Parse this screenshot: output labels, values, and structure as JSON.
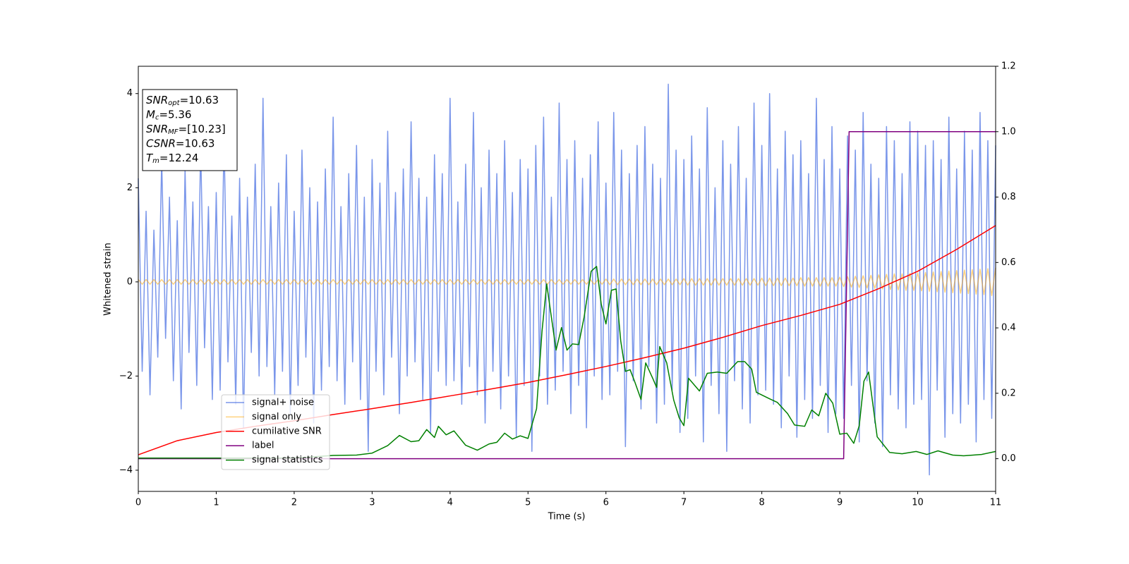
{
  "chart_data": {
    "type": "line",
    "xlabel": "Time (s)",
    "ylabel": "Whitened strain",
    "xlim": [
      0,
      11
    ],
    "xticks": [
      0,
      1,
      2,
      3,
      4,
      5,
      6,
      7,
      8,
      9,
      10,
      11
    ],
    "ylim": [
      -4.45,
      4.58
    ],
    "yticks": [
      {
        "value": -4,
        "label": "−4"
      },
      {
        "value": -2,
        "label": "−2"
      },
      0,
      2,
      4
    ],
    "y2lim": [
      -0.1,
      1.2
    ],
    "y2ticks": [
      {
        "value": 0,
        "label": "0.0"
      },
      0.2,
      0.4,
      0.6,
      0.8,
      {
        "value": 1,
        "label": "1.0"
      },
      1.2
    ],
    "legend": "lower left",
    "annotations": [
      {
        "name": "SNR",
        "subscript": "opt",
        "text": "=10.63"
      },
      {
        "name": "M",
        "subscript": "c",
        "text": "=5.36"
      },
      {
        "name": "SNR",
        "subscript": "MF",
        "text": "=[10.23]"
      },
      {
        "name": "CSNR",
        "text": "=10.63"
      },
      {
        "name": "T",
        "subscript": "m",
        "text": "=12.24"
      }
    ],
    "series": [
      {
        "name": "signal+ noise",
        "color": "#4169e1",
        "alpha": 0.7,
        "x": [
          0,
          0.05,
          0.1,
          0.15,
          0.2,
          0.25,
          0.3,
          0.35,
          0.4,
          0.45,
          0.5,
          0.55,
          0.6,
          0.65,
          0.7,
          0.75,
          0.8,
          0.85,
          0.9,
          0.95,
          1,
          1.05,
          1.1,
          1.15,
          1.2,
          1.25,
          1.3,
          1.35,
          1.4,
          1.45,
          1.5,
          1.55,
          1.6,
          1.65,
          1.7,
          1.75,
          1.8,
          1.85,
          1.9,
          1.95,
          2,
          2.05,
          2.1,
          2.15,
          2.2,
          2.25,
          2.3,
          2.35,
          2.4,
          2.45,
          2.5,
          2.55,
          2.6,
          2.65,
          2.7,
          2.75,
          2.8,
          2.85,
          2.9,
          2.95,
          3,
          3.05,
          3.1,
          3.15,
          3.2,
          3.25,
          3.3,
          3.35,
          3.4,
          3.45,
          3.5,
          3.55,
          3.6,
          3.65,
          3.7,
          3.75,
          3.8,
          3.85,
          3.9,
          3.95,
          4,
          4.05,
          4.1,
          4.15,
          4.2,
          4.25,
          4.3,
          4.35,
          4.4,
          4.45,
          4.5,
          4.55,
          4.6,
          4.65,
          4.7,
          4.75,
          4.8,
          4.85,
          4.9,
          4.95,
          5,
          5.05,
          5.1,
          5.15,
          5.2,
          5.25,
          5.3,
          5.35,
          5.4,
          5.45,
          5.5,
          5.55,
          5.6,
          5.65,
          5.7,
          5.75,
          5.8,
          5.85,
          5.9,
          5.95,
          6,
          6.05,
          6.1,
          6.15,
          6.2,
          6.25,
          6.3,
          6.35,
          6.4,
          6.45,
          6.5,
          6.55,
          6.6,
          6.65,
          6.7,
          6.75,
          6.8,
          6.85,
          6.9,
          6.95,
          7,
          7.05,
          7.1,
          7.15,
          7.2,
          7.25,
          7.3,
          7.35,
          7.4,
          7.45,
          7.5,
          7.55,
          7.6,
          7.65,
          7.7,
          7.75,
          7.8,
          7.85,
          7.9,
          7.95,
          8,
          8.05,
          8.1,
          8.15,
          8.2,
          8.25,
          8.3,
          8.35,
          8.4,
          8.45,
          8.5,
          8.55,
          8.6,
          8.65,
          8.7,
          8.75,
          8.8,
          8.85,
          8.9,
          8.95,
          9,
          9.05,
          9.1,
          9.15,
          9.2,
          9.25,
          9.3,
          9.35,
          9.4,
          9.45,
          9.5,
          9.55,
          9.6,
          9.65,
          9.7,
          9.75,
          9.8,
          9.85,
          9.9,
          9.95,
          10,
          10.05,
          10.1,
          10.15,
          10.2,
          10.25,
          10.3,
          10.35,
          10.4,
          10.45,
          10.5,
          10.55,
          10.6,
          10.65,
          10.7,
          10.75,
          10.8,
          10.85,
          10.9,
          10.95,
          11
        ],
        "values": [
          2.2,
          -1.9,
          1.5,
          -2.4,
          1.1,
          -1.6,
          2.6,
          -1.2,
          1.8,
          -2.1,
          1.3,
          -2.7,
          2.4,
          -1.5,
          1.7,
          -2.2,
          2.9,
          -1.4,
          1.6,
          -2.5,
          1.9,
          -2.3,
          3.1,
          -1.7,
          1.4,
          -2.6,
          2.2,
          -3.1,
          1.8,
          -1.5,
          2.5,
          -2.0,
          3.9,
          -1.8,
          1.6,
          -2.4,
          2.1,
          -1.9,
          2.7,
          -2.8,
          1.5,
          -2.2,
          2.8,
          -1.6,
          2.0,
          -3.0,
          1.7,
          -2.3,
          2.4,
          -1.8,
          3.5,
          -2.1,
          1.6,
          -2.6,
          2.3,
          -1.7,
          2.9,
          -2.5,
          1.8,
          -3.6,
          2.6,
          -1.9,
          2.1,
          -2.4,
          3.2,
          -1.6,
          1.9,
          -2.8,
          2.4,
          -2.0,
          3.4,
          -1.7,
          2.2,
          -2.5,
          1.8,
          -3.2,
          2.7,
          -1.9,
          2.3,
          -2.2,
          3.9,
          -2.1,
          1.7,
          -2.6,
          2.5,
          -1.8,
          3.6,
          -2.4,
          2.0,
          -3.0,
          2.8,
          -1.9,
          2.3,
          -2.7,
          3.0,
          -2.0,
          1.9,
          -3.3,
          2.6,
          -2.2,
          2.4,
          -3.6,
          2.9,
          -2.0,
          3.5,
          -2.6,
          1.8,
          -2.3,
          3.8,
          -1.9,
          2.6,
          -2.8,
          3.0,
          -2.2,
          2.2,
          -3.1,
          2.7,
          -2.0,
          3.4,
          -2.5,
          2.1,
          -2.4,
          3.6,
          -1.9,
          2.8,
          -3.5,
          2.3,
          -2.1,
          2.9,
          -2.7,
          3.3,
          -1.8,
          2.5,
          -3.0,
          2.2,
          -2.6,
          4.2,
          -2.3,
          2.8,
          -3.2,
          2.6,
          -2.9,
          3.1,
          -2.0,
          2.4,
          -3.4,
          3.7,
          -2.2,
          2.0,
          -2.8,
          3.0,
          -3.6,
          2.5,
          -2.1,
          3.3,
          -2.7,
          2.2,
          -3.0,
          3.8,
          -2.4,
          2.9,
          -2.3,
          4.0,
          -2.6,
          2.4,
          -3.1,
          3.2,
          -2.0,
          2.7,
          -3.3,
          3.0,
          -2.5,
          2.3,
          -2.9,
          3.9,
          -2.2,
          2.6,
          -3.2,
          3.3,
          -2.8,
          2.4,
          -2.9,
          3.1,
          -2.2,
          2.8,
          -3.4,
          3.6,
          -2.1,
          2.5,
          -3.0,
          2.2,
          -3.5,
          3.3,
          -2.4,
          3.0,
          -2.7,
          2.3,
          -3.1,
          3.4,
          -2.6,
          3.2,
          -2.5,
          2.9,
          -4.1,
          3.0,
          -2.3,
          2.6,
          -3.3,
          3.5,
          -2.8,
          2.4,
          -3.0,
          3.2,
          -2.6,
          2.8,
          -3.4,
          3.6,
          -2.5,
          3.0,
          -2.9,
          2.9
        ]
      },
      {
        "name": "signal only",
        "color": "#ffa500",
        "alpha": 0.5,
        "x": [
          0,
          0.05,
          0.1,
          0.15,
          0.2,
          0.25,
          0.3,
          0.35,
          0.4,
          0.45,
          0.5,
          0.55,
          0.6,
          0.65,
          0.7,
          0.75,
          0.8,
          0.85,
          0.9,
          0.95,
          1,
          1.05,
          1.1,
          1.15,
          1.2,
          1.25,
          1.3,
          1.35,
          1.4,
          1.45,
          1.5,
          1.55,
          1.6,
          1.65,
          1.7,
          1.75,
          1.8,
          1.85,
          1.9,
          1.95,
          2,
          2.05,
          2.1,
          2.15,
          2.2,
          2.25,
          2.3,
          2.35,
          2.4,
          2.45,
          2.5,
          2.55,
          2.6,
          2.65,
          2.7,
          2.75,
          2.8,
          2.85,
          2.9,
          2.95,
          3,
          3.05,
          3.1,
          3.15,
          3.2,
          3.25,
          3.3,
          3.35,
          3.4,
          3.45,
          3.5,
          3.55,
          3.6,
          3.65,
          3.7,
          3.75,
          3.8,
          3.85,
          3.9,
          3.95,
          4,
          4.05,
          4.1,
          4.15,
          4.2,
          4.25,
          4.3,
          4.35,
          4.4,
          4.45,
          4.5,
          4.55,
          4.6,
          4.65,
          4.7,
          4.75,
          4.8,
          4.85,
          4.9,
          4.95,
          5,
          5.05,
          5.1,
          5.15,
          5.2,
          5.25,
          5.3,
          5.35,
          5.4,
          5.45,
          5.5,
          5.55,
          5.6,
          5.65,
          5.7,
          5.75,
          5.8,
          5.85,
          5.9,
          5.95,
          6,
          6.05,
          6.1,
          6.15,
          6.2,
          6.25,
          6.3,
          6.35,
          6.4,
          6.45,
          6.5,
          6.55,
          6.6,
          6.65,
          6.7,
          6.75,
          6.8,
          6.85,
          6.9,
          6.95,
          7,
          7.05,
          7.1,
          7.15,
          7.2,
          7.25,
          7.3,
          7.35,
          7.4,
          7.45,
          7.5,
          7.55,
          7.6,
          7.65,
          7.7,
          7.75,
          7.8,
          7.85,
          7.9,
          7.95,
          8,
          8.05,
          8.1,
          8.15,
          8.2,
          8.25,
          8.3,
          8.35,
          8.4,
          8.45,
          8.5,
          8.55,
          8.6,
          8.65,
          8.7,
          8.75,
          8.8,
          8.85,
          8.9,
          8.95,
          9,
          9.05,
          9.1,
          9.15,
          9.2,
          9.25,
          9.3,
          9.35,
          9.4,
          9.45,
          9.5,
          9.55,
          9.6,
          9.65,
          9.7,
          9.75,
          9.8,
          9.85,
          9.9,
          9.95,
          10,
          10.05,
          10.1,
          10.15,
          10.2,
          10.25,
          10.3,
          10.35,
          10.4,
          10.45,
          10.5,
          10.55,
          10.6,
          10.65,
          10.7,
          10.75,
          10.8,
          10.85,
          10.9,
          10.95,
          11
        ],
        "values": [
          0.05,
          -0.05,
          0.05,
          -0.05,
          0.05,
          -0.05,
          0.05,
          -0.05,
          0.05,
          -0.05,
          0.05,
          -0.05,
          0.05,
          -0.05,
          0.05,
          -0.05,
          0.05,
          -0.05,
          0.05,
          -0.05,
          0.05,
          -0.05,
          0.05,
          -0.05,
          0.05,
          -0.05,
          0.05,
          -0.05,
          0.05,
          -0.05,
          0.05,
          -0.05,
          0.05,
          -0.05,
          0.05,
          -0.05,
          0.05,
          -0.05,
          0.05,
          -0.05,
          0.05,
          -0.05,
          0.05,
          -0.05,
          0.05,
          -0.05,
          0.05,
          -0.05,
          0.05,
          -0.05,
          0.05,
          -0.05,
          0.05,
          -0.05,
          0.05,
          -0.05,
          0.05,
          -0.05,
          0.05,
          -0.05,
          0.05,
          -0.05,
          0.05,
          -0.05,
          0.05,
          -0.05,
          0.05,
          -0.05,
          0.05,
          -0.05,
          0.05,
          -0.05,
          0.05,
          -0.05,
          0.05,
          -0.05,
          0.05,
          -0.05,
          0.05,
          -0.05,
          0.05,
          -0.05,
          0.05,
          -0.05,
          0.05,
          -0.05,
          0.05,
          -0.05,
          0.05,
          -0.05,
          0.05,
          -0.05,
          0.05,
          -0.05,
          0.05,
          -0.05,
          0.05,
          -0.05,
          0.05,
          -0.05,
          0.05,
          -0.05,
          0.05,
          -0.05,
          0.05,
          -0.05,
          0.05,
          -0.05,
          0.05,
          -0.05,
          0.05,
          -0.05,
          0.05,
          -0.05,
          0.05,
          -0.05,
          0.05,
          -0.05,
          0.05,
          -0.05,
          0.06,
          -0.06,
          0.06,
          -0.06,
          0.06,
          -0.06,
          0.06,
          -0.06,
          0.06,
          -0.06,
          0.06,
          -0.06,
          0.06,
          -0.06,
          0.06,
          -0.06,
          0.06,
          -0.06,
          0.06,
          -0.06,
          0.07,
          -0.07,
          0.07,
          -0.07,
          0.07,
          -0.07,
          0.07,
          -0.07,
          0.07,
          -0.07,
          0.07,
          -0.07,
          0.07,
          -0.07,
          0.07,
          -0.07,
          0.07,
          -0.07,
          0.07,
          -0.07,
          0.08,
          -0.08,
          0.08,
          -0.08,
          0.08,
          -0.08,
          0.08,
          -0.08,
          0.08,
          -0.08,
          0.09,
          -0.09,
          0.09,
          -0.09,
          0.09,
          -0.09,
          0.09,
          -0.09,
          0.09,
          -0.09,
          0.1,
          -0.1,
          0.11,
          -0.11,
          0.12,
          -0.12,
          0.13,
          -0.13,
          0.14,
          -0.14,
          0.15,
          -0.15,
          0.16,
          -0.16,
          0.17,
          -0.17,
          0.17,
          -0.18,
          0.18,
          -0.18,
          0.19,
          -0.19,
          0.2,
          -0.2,
          0.21,
          -0.21,
          0.22,
          -0.22,
          0.23,
          -0.23,
          0.24,
          -0.24,
          0.25,
          -0.25,
          0.26,
          -0.26,
          0.27,
          -0.27,
          0.28,
          -0.29,
          0.3
        ]
      },
      {
        "name": "cumilative SNR",
        "color": "#ff0000",
        "axis": "y2",
        "x": [
          0,
          0.5,
          1,
          1.5,
          2,
          2.5,
          3,
          3.5,
          4,
          4.5,
          5,
          5.5,
          6,
          6.5,
          7,
          7.5,
          8,
          8.5,
          9,
          9.5,
          10,
          10.5,
          11
        ],
        "values": [
          0.012,
          0.055,
          0.08,
          0.099,
          0.116,
          0.135,
          0.153,
          0.172,
          0.192,
          0.212,
          0.233,
          0.257,
          0.282,
          0.309,
          0.338,
          0.371,
          0.407,
          0.438,
          0.472,
          0.52,
          0.573,
          0.64,
          0.713
        ]
      },
      {
        "name": "label",
        "color": "#800080",
        "axis": "y2",
        "x": [
          0,
          9.05,
          9.12,
          11
        ],
        "values": [
          0,
          0,
          1,
          1
        ]
      },
      {
        "name": "signal statistics",
        "color": "#008000",
        "axis": "y2",
        "x": [
          0,
          2,
          2.5,
          2.8,
          3,
          3.2,
          3.35,
          3.5,
          3.6,
          3.7,
          3.8,
          3.85,
          3.95,
          4.05,
          4.2,
          4.35,
          4.5,
          4.6,
          4.7,
          4.8,
          4.9,
          5,
          5.11,
          5.18,
          5.24,
          5.36,
          5.43,
          5.5,
          5.57,
          5.65,
          5.72,
          5.81,
          5.88,
          5.94,
          6,
          6.07,
          6.13,
          6.19,
          6.25,
          6.31,
          6.37,
          6.45,
          6.51,
          6.6,
          6.65,
          6.69,
          6.78,
          6.87,
          6.94,
          7,
          7.06,
          7.2,
          7.3,
          7.43,
          7.55,
          7.69,
          7.78,
          7.87,
          7.93,
          8.1,
          8.2,
          8.33,
          8.42,
          8.55,
          8.64,
          8.73,
          8.82,
          8.91,
          9,
          9.09,
          9.18,
          9.25,
          9.31,
          9.37,
          9.48,
          9.64,
          9.8,
          9.98,
          10.12,
          10.26,
          10.45,
          10.59,
          10.82,
          11
        ],
        "values": [
          0.002,
          0.002,
          0.01,
          0.011,
          0.017,
          0.04,
          0.071,
          0.052,
          0.055,
          0.089,
          0.065,
          0.099,
          0.073,
          0.085,
          0.041,
          0.026,
          0.045,
          0.05,
          0.078,
          0.06,
          0.07,
          0.062,
          0.153,
          0.39,
          0.534,
          0.332,
          0.401,
          0.332,
          0.351,
          0.349,
          0.433,
          0.573,
          0.588,
          0.472,
          0.412,
          0.515,
          0.519,
          0.36,
          0.267,
          0.272,
          0.235,
          0.181,
          0.293,
          0.246,
          0.218,
          0.343,
          0.293,
          0.179,
          0.125,
          0.101,
          0.246,
          0.207,
          0.261,
          0.265,
          0.261,
          0.297,
          0.297,
          0.274,
          0.203,
          0.183,
          0.172,
          0.138,
          0.103,
          0.099,
          0.149,
          0.131,
          0.2,
          0.17,
          0.075,
          0.078,
          0.047,
          0.101,
          0.237,
          0.265,
          0.067,
          0.019,
          0.015,
          0.022,
          0.013,
          0.024,
          0.011,
          0.009,
          0.013,
          0.022
        ]
      }
    ]
  }
}
